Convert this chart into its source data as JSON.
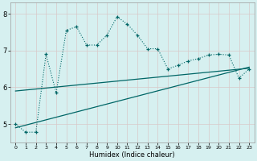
{
  "xlabel": "Humidex (Indice chaleur)",
  "xlim": [
    -0.5,
    23.5
  ],
  "ylim": [
    4.5,
    8.3
  ],
  "yticks": [
    5,
    6,
    7,
    8
  ],
  "xticks": [
    0,
    1,
    2,
    3,
    4,
    5,
    6,
    7,
    8,
    9,
    10,
    11,
    12,
    13,
    14,
    15,
    16,
    17,
    18,
    19,
    20,
    21,
    22,
    23
  ],
  "bg_color": "#d6f0f0",
  "line_color": "#006666",
  "line1_x": [
    0,
    1,
    2,
    3,
    4,
    5,
    6,
    7,
    8,
    9,
    10,
    11,
    12,
    13,
    14,
    15,
    16,
    17,
    18,
    19,
    20,
    21,
    22,
    23
  ],
  "line1_y": [
    5.0,
    4.78,
    4.78,
    6.9,
    5.85,
    7.55,
    7.65,
    7.15,
    7.15,
    7.42,
    7.92,
    7.72,
    7.42,
    7.05,
    7.05,
    6.5,
    6.6,
    6.72,
    6.78,
    6.88,
    6.9,
    6.88,
    6.25,
    6.5
  ],
  "line2_x": [
    0,
    23
  ],
  "line2_y": [
    4.9,
    6.55
  ],
  "line3_x": [
    0,
    23
  ],
  "line3_y": [
    5.9,
    6.52
  ]
}
